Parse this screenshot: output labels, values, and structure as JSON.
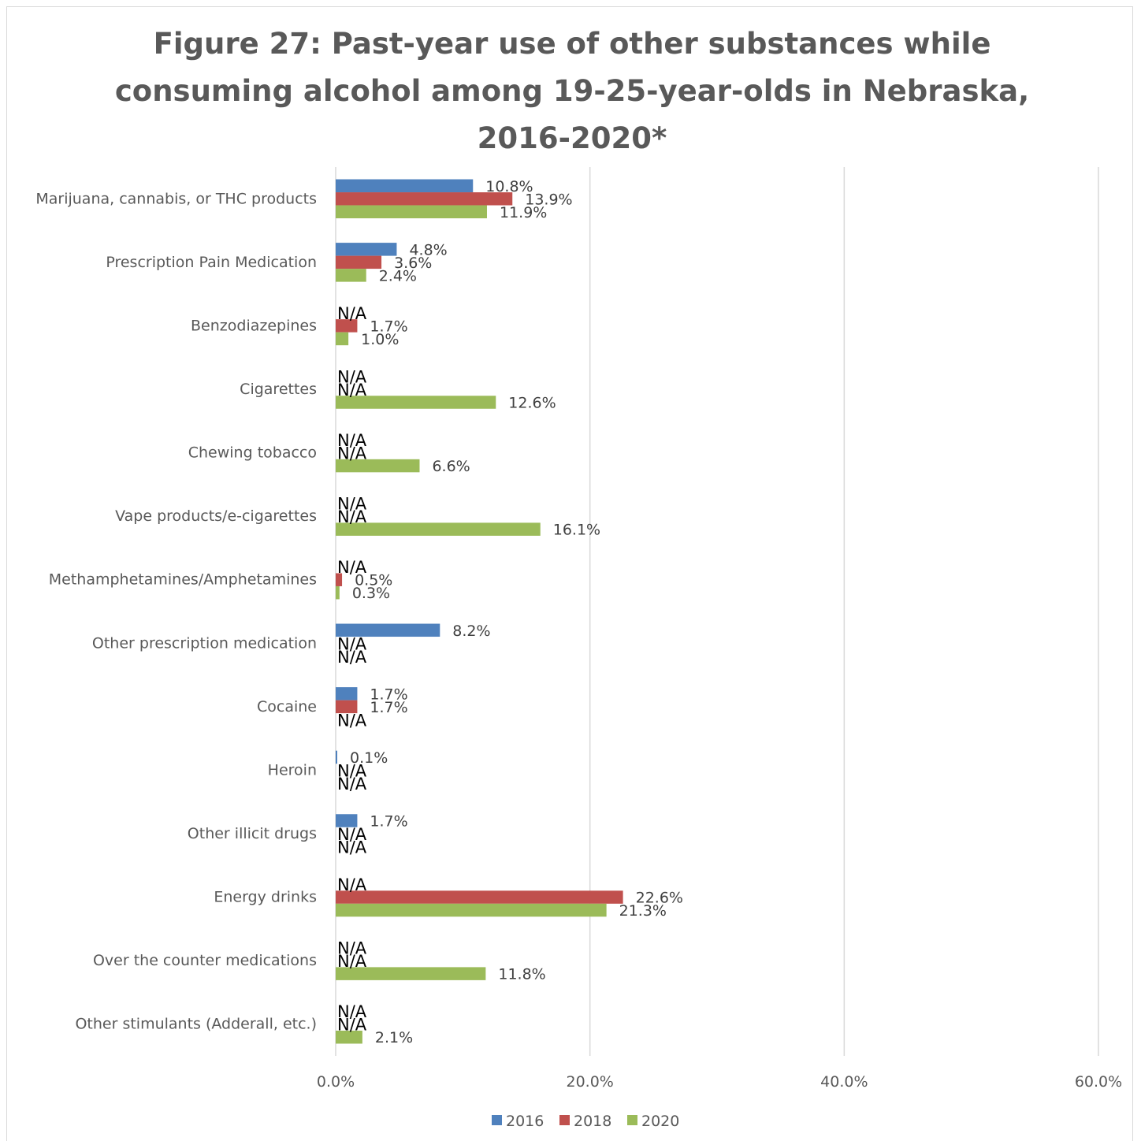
{
  "chart_data": {
    "type": "bar",
    "orientation": "horizontal",
    "title": "Figure 27: Past-year use of other substances while\nconsuming alcohol among 19-25-year-olds in Nebraska,\n2016-2020*",
    "categories": [
      "Marijuana, cannabis, or THC products",
      "Prescription Pain Medication",
      "Benzodiazepines",
      "Cigarettes",
      "Chewing tobacco",
      "Vape products/e-cigarettes",
      "Methamphetamines/Amphetamines",
      "Other prescription medication",
      "Cocaine",
      "Heroin",
      "Other illicit drugs",
      "Energy drinks",
      "Over the counter medications",
      "Other stimulants (Adderall, etc.)"
    ],
    "series": [
      {
        "name": "2016",
        "color": "#4f81bd",
        "values": [
          10.8,
          4.8,
          null,
          null,
          null,
          null,
          null,
          8.2,
          1.7,
          0.1,
          1.7,
          null,
          null,
          null
        ]
      },
      {
        "name": "2018",
        "color": "#c0504d",
        "values": [
          13.9,
          3.6,
          1.7,
          null,
          null,
          null,
          0.5,
          null,
          1.7,
          null,
          null,
          22.6,
          null,
          null
        ]
      },
      {
        "name": "2020",
        "color": "#9bbb59",
        "values": [
          11.9,
          2.4,
          1.0,
          12.6,
          6.6,
          16.1,
          0.3,
          null,
          null,
          null,
          null,
          21.3,
          11.8,
          2.1
        ]
      }
    ],
    "missing_label": "N/A",
    "value_suffix": "%",
    "xlim": [
      0,
      60
    ],
    "xticks": [
      "0.0%",
      "20.0%",
      "40.0%",
      "60.0%"
    ],
    "grid": true,
    "legend_position": "bottom"
  }
}
